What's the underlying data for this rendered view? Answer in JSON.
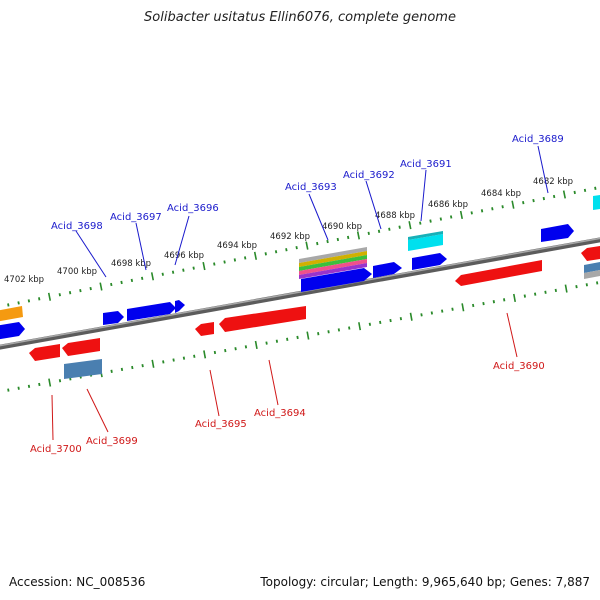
{
  "title": "Solibacter usitatus Ellin6076, complete genome",
  "footer": {
    "accession": "Accession: NC_008536",
    "summary": "Topology: circular; Length: 9,965,640 bp; Genes: 7,887"
  },
  "ruler": {
    "labels": [
      "4702 kbp",
      "4700 kbp",
      "4698 kbp",
      "4696 kbp",
      "4694 kbp",
      "4692 kbp",
      "4690 kbp",
      "4688 kbp",
      "4686 kbp",
      "4684 kbp",
      "4682 kbp"
    ]
  },
  "genes": {
    "top": [
      "Acid_3698",
      "Acid_3697",
      "Acid_3696",
      "Acid_3693",
      "Acid_3692",
      "Acid_3691",
      "Acid_3689"
    ],
    "bottom": [
      "Acid_3700",
      "Acid_3699",
      "Acid_3695",
      "Acid_3694",
      "Acid_3690"
    ]
  },
  "colors": {
    "forward_gene": "#0000ee",
    "reverse_gene": "#ee1111",
    "backbone": "#8a8a8a",
    "tick": "#2a8a2a",
    "cyan_gene": "#00e0ee",
    "orange_gene": "#f59a10",
    "steelblue_gene": "#4a7fb0"
  }
}
